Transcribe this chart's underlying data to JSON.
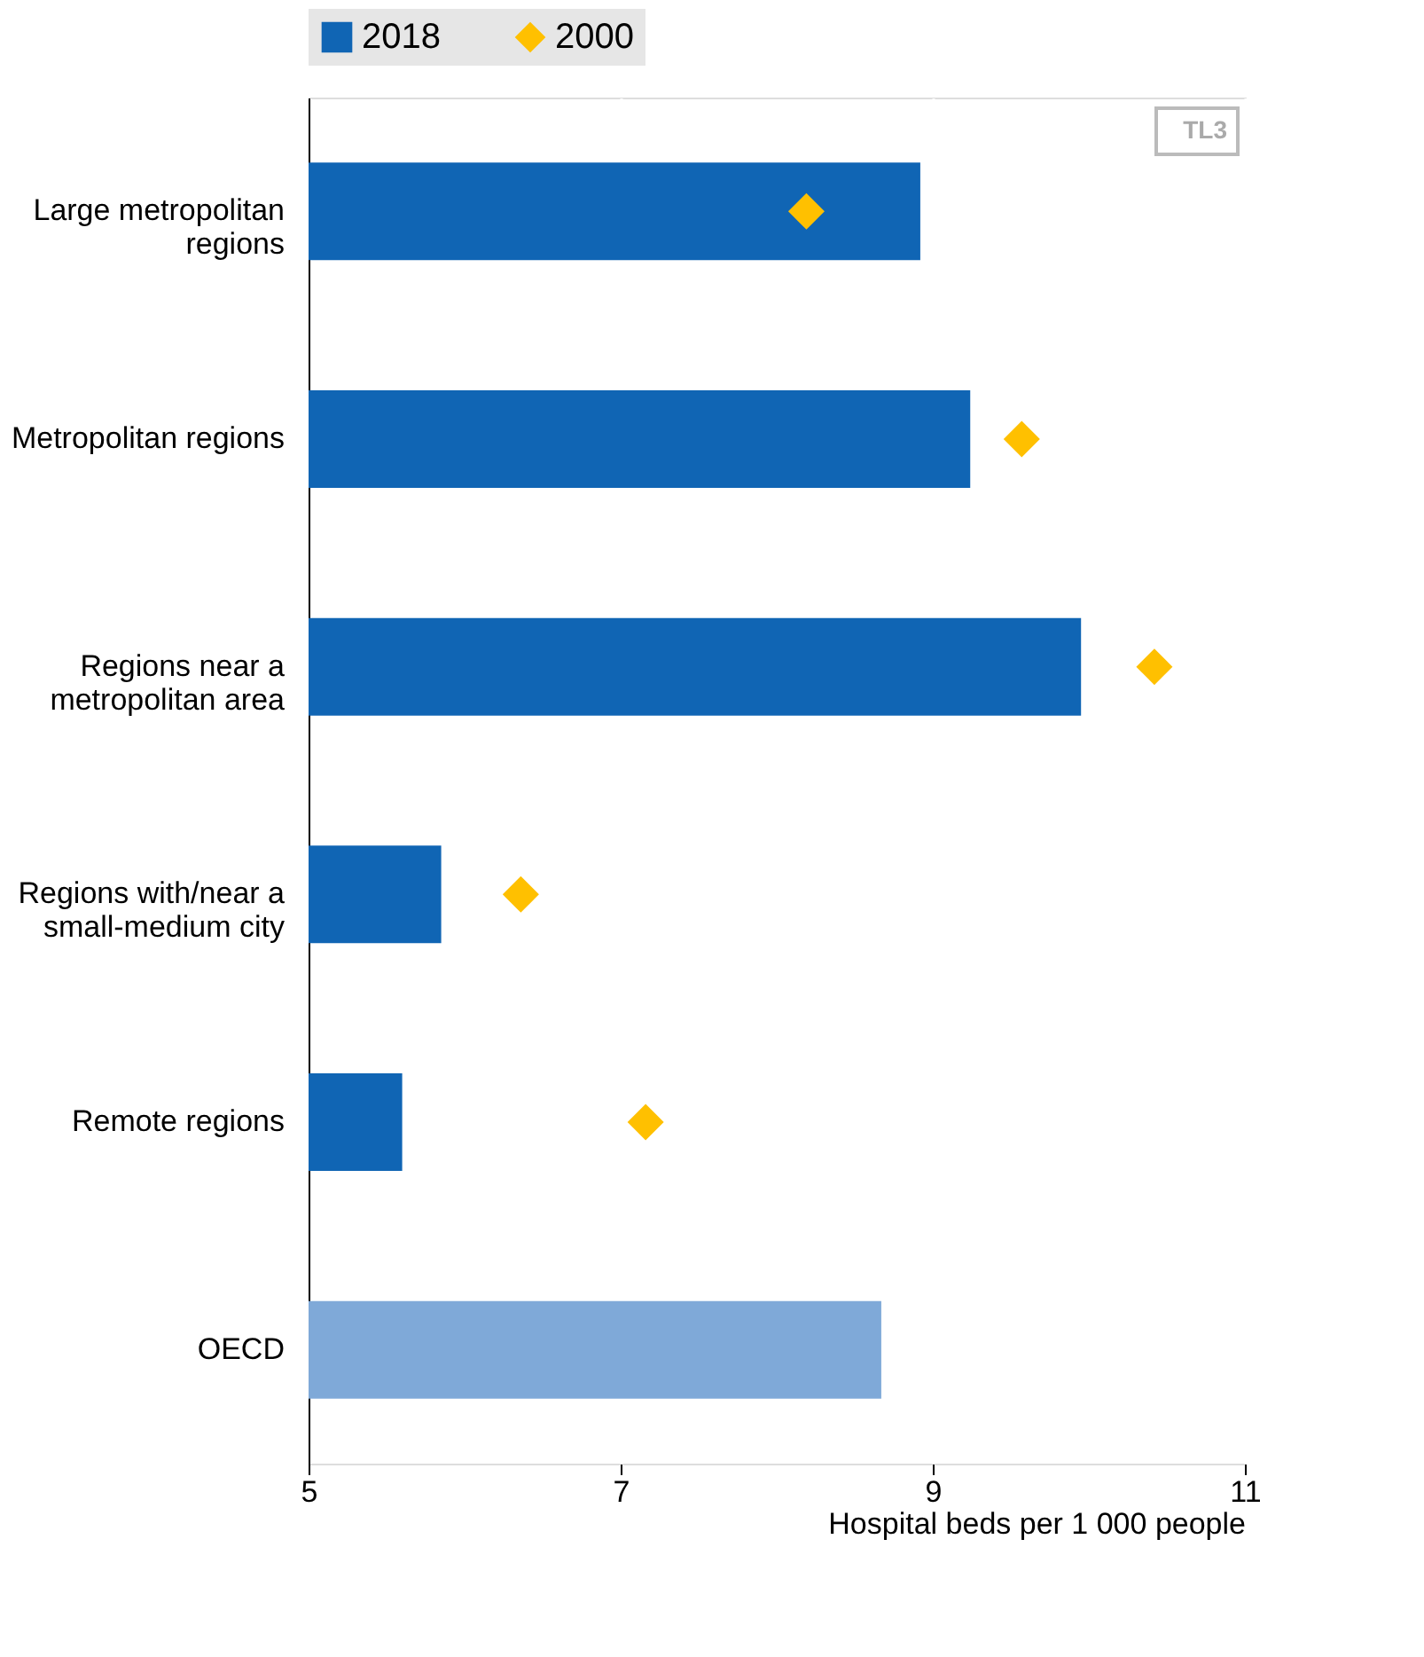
{
  "chart_data": {
    "type": "bar",
    "orientation": "horizontal",
    "categories": [
      "Large metropolitan regions",
      "Metropolitan regions",
      "Regions near a metropolitan area",
      "Regions with/near a small-medium city",
      "Remote regions",
      "OECD"
    ],
    "series": [
      {
        "name": "2018",
        "color": "#1065b4",
        "colors": [
          "#1065b4",
          "#1065b4",
          "#1065b4",
          "#1065b4",
          "#1065b4",
          "#7fa9d8"
        ],
        "values": [
          8.92,
          9.24,
          9.95,
          5.85,
          5.6,
          8.67
        ]
      },
      {
        "name": "2000",
        "type": "scatter",
        "marker": "diamond",
        "color": "#ffc000",
        "values": [
          8.19,
          9.57,
          10.42,
          6.36,
          7.16,
          null
        ]
      }
    ],
    "xlim": [
      5,
      11
    ],
    "xticks": [
      5,
      7,
      9,
      11
    ],
    "xlabel": "Hospital beds per 1 000 people",
    "grid": "x",
    "legend": "top",
    "annotations": [
      "TL3"
    ]
  }
}
